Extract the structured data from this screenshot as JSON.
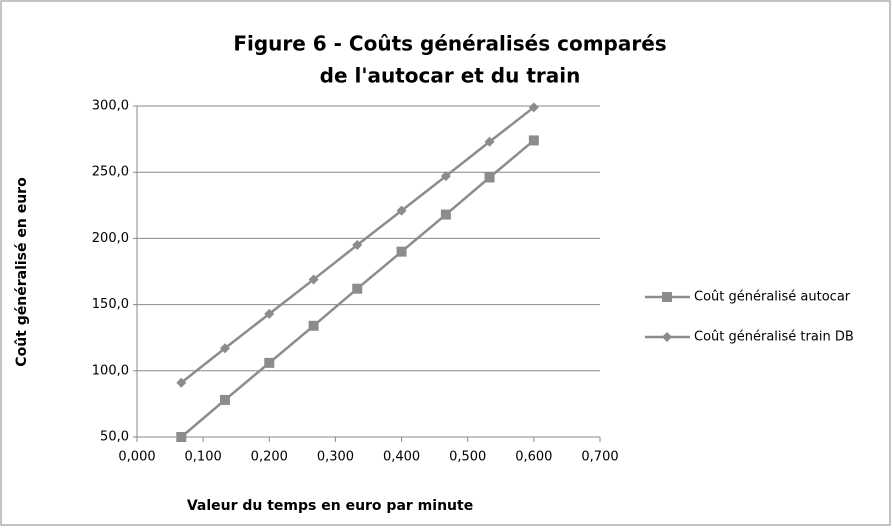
{
  "chart_data": {
    "type": "line",
    "title": [
      "Figure 6 - Coûts généralisés comparés",
      "de l'autocar et du train"
    ],
    "x_label": "Valeur du temps en euro par minute",
    "y_label": "Coût généralisé en euro",
    "x": [
      0.067,
      0.133,
      0.2,
      0.267,
      0.333,
      0.4,
      0.467,
      0.533,
      0.6
    ],
    "series": [
      {
        "name": "Coût généralisé autocar",
        "color": "#8c8c8c",
        "marker": "square",
        "values": [
          50,
          78,
          106,
          134,
          162,
          190,
          218,
          246,
          274
        ]
      },
      {
        "name": "Coût généralisé train DB",
        "color": "#8c8c8c",
        "marker": "diamond",
        "values": [
          91,
          117,
          143,
          169,
          195,
          221,
          247,
          273,
          299
        ]
      }
    ],
    "xlim": [
      0,
      0.7
    ],
    "xticks": [
      {
        "value": 0,
        "label": "0,000"
      },
      {
        "value": 0.1,
        "label": "0,100"
      },
      {
        "value": 0.2,
        "label": "0,200"
      },
      {
        "value": 0.3,
        "label": "0,300"
      },
      {
        "value": 0.4,
        "label": "0,400"
      },
      {
        "value": 0.5,
        "label": "0,500"
      },
      {
        "value": 0.6,
        "label": "0,600"
      },
      {
        "value": 0.7,
        "label": "0,700"
      }
    ],
    "ylim": [
      50,
      300
    ],
    "yticks": [
      {
        "value": 50,
        "label": "50,0"
      },
      {
        "value": 100,
        "label": "100,0"
      },
      {
        "value": 150,
        "label": "150,0"
      },
      {
        "value": 200,
        "label": "200,0"
      },
      {
        "value": 250,
        "label": "250,0"
      },
      {
        "value": 300,
        "label": "300,0"
      }
    ],
    "grid": true,
    "legend": "right"
  }
}
